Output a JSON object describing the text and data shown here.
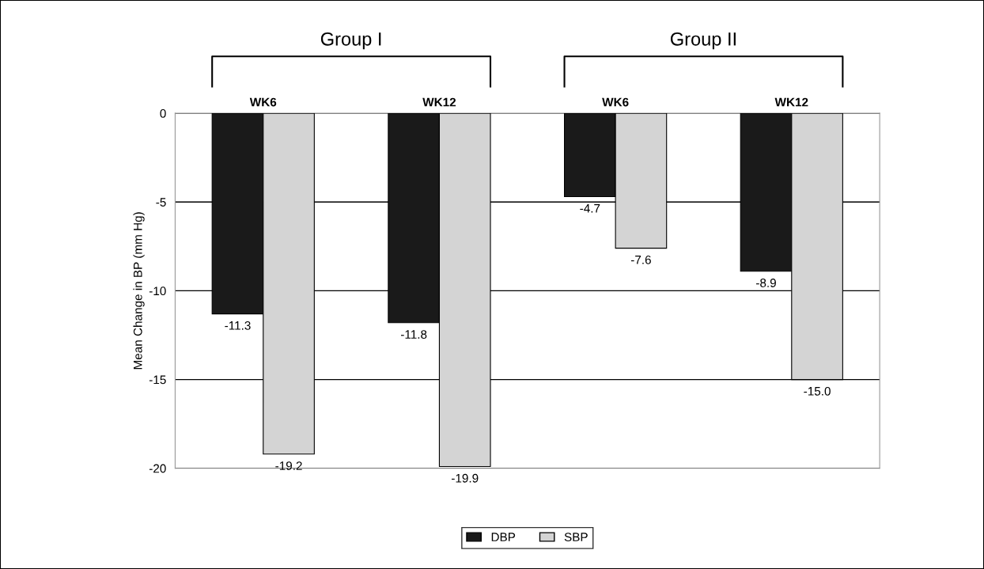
{
  "chart_data": {
    "type": "bar",
    "ylabel": "Mean Change in BP (mm Hg)",
    "categories": [
      "WK6",
      "WK12",
      "WK6",
      "WK12"
    ],
    "series": [
      {
        "name": "DBP",
        "color": "#1a1a1a",
        "values": [
          -11.3,
          -11.8,
          -4.7,
          -8.9
        ],
        "value_labels": [
          "-11.3",
          "-11.8",
          "-4.7",
          "-8.9"
        ]
      },
      {
        "name": "SBP",
        "color": "#d4d4d4",
        "values": [
          -19.2,
          -19.9,
          -7.6,
          -15.0
        ],
        "value_labels": [
          "-19.2",
          "-19.9",
          "-7.6",
          "-15.0"
        ]
      }
    ],
    "annotations": [
      "Group I",
      "Group II"
    ],
    "ylim": [
      -20,
      0
    ],
    "yticks": [
      0,
      -5,
      -10,
      -15,
      -20
    ],
    "grid": "y",
    "legend": "bottom"
  }
}
